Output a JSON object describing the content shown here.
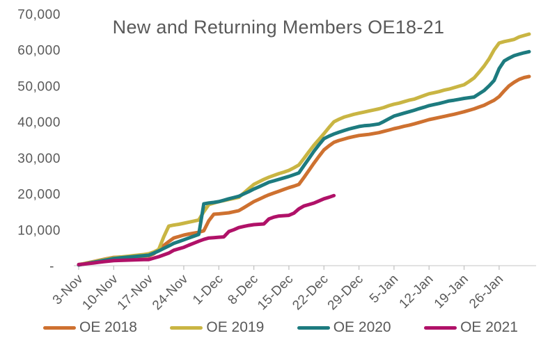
{
  "chart_data": {
    "type": "line",
    "title": "New and Returning Members OE18-21",
    "x_tick_labels": [
      "3-Nov",
      "10-Nov",
      "17-Nov",
      "24-Nov",
      "1-Dec",
      "8-Dec",
      "15-Dec",
      "22-Dec",
      "29-Dec",
      "5-Jan",
      "12-Jan",
      "19-Jan",
      "26-Jan"
    ],
    "x_tick_interval_days": 7,
    "x_total_days": 91,
    "y_axis_labels": [
      "-",
      "10,000",
      "20,000",
      "30,000",
      "40,000",
      "50,000",
      "60,000",
      "70,000"
    ],
    "ylim": [
      0,
      70000
    ],
    "grid": false,
    "legend_position": "bottom",
    "text_color": "#595959",
    "axis_color": "#D9D9D9",
    "tick_color": "#BFBFBF",
    "series": [
      {
        "name": "OE 2018",
        "color": "#CE7130",
        "values": [
          250,
          550,
          850,
          1150,
          1450,
          1750,
          2050,
          2300,
          2360,
          2420,
          2480,
          2540,
          2590,
          2650,
          2700,
          3300,
          4400,
          5600,
          6700,
          7700,
          8100,
          8500,
          8800,
          9050,
          9300,
          9700,
          12500,
          14300,
          14400,
          14550,
          14700,
          15000,
          15300,
          16100,
          16950,
          17800,
          18450,
          19100,
          19700,
          20200,
          20700,
          21200,
          21700,
          22100,
          22600,
          24500,
          26500,
          28500,
          30400,
          32200,
          33300,
          34300,
          34800,
          35200,
          35600,
          35900,
          36200,
          36350,
          36500,
          36750,
          37000,
          37350,
          37700,
          38100,
          38400,
          38750,
          39050,
          39400,
          39800,
          40200,
          40600,
          40900,
          41200,
          41500,
          41800,
          42100,
          42450,
          42800,
          43200,
          43600,
          44100,
          44600,
          45300,
          46000,
          47000,
          48600,
          50000,
          51000,
          51800,
          52300,
          52600
        ]
      },
      {
        "name": "OE 2019",
        "color": "#C9B543",
        "values": [
          300,
          550,
          850,
          1100,
          1400,
          1650,
          1950,
          2200,
          2350,
          2500,
          2650,
          2800,
          2950,
          3100,
          3300,
          3800,
          4500,
          8000,
          11000,
          11300,
          11500,
          11800,
          12100,
          12400,
          12700,
          15000,
          17000,
          17400,
          17800,
          18100,
          18400,
          18700,
          19000,
          20200,
          21400,
          22600,
          23300,
          24000,
          24600,
          25100,
          25600,
          26000,
          26500,
          27200,
          28000,
          29800,
          31700,
          33500,
          35100,
          36700,
          38400,
          40000,
          40700,
          41300,
          41700,
          42100,
          42400,
          42700,
          43000,
          43300,
          43600,
          44000,
          44500,
          44900,
          45200,
          45600,
          46000,
          46300,
          46800,
          47300,
          47800,
          48100,
          48400,
          48800,
          49100,
          49500,
          49900,
          50300,
          51200,
          52200,
          53800,
          55500,
          57500,
          60000,
          61900,
          62300,
          62600,
          62900,
          63600,
          64000,
          64400
        ]
      },
      {
        "name": "OE 2020",
        "color": "#1D7B7F",
        "values": [
          200,
          450,
          700,
          950,
          1200,
          1450,
          1700,
          2000,
          2130,
          2260,
          2390,
          2520,
          2650,
          2780,
          2900,
          3500,
          4100,
          4800,
          5500,
          6200,
          6700,
          7200,
          7700,
          8200,
          8700,
          17200,
          17450,
          17600,
          17800,
          18200,
          18600,
          18950,
          19300,
          19950,
          20600,
          21300,
          21900,
          22550,
          23200,
          23600,
          24000,
          24400,
          24800,
          25300,
          25800,
          27800,
          29800,
          31800,
          33600,
          35300,
          36000,
          36600,
          37100,
          37550,
          38000,
          38350,
          38700,
          38900,
          39000,
          39200,
          39400,
          40100,
          40850,
          41600,
          42000,
          42400,
          42800,
          43200,
          43650,
          44050,
          44500,
          44800,
          45100,
          45450,
          45800,
          46000,
          46250,
          46500,
          46700,
          46900,
          47800,
          48700,
          50000,
          51500,
          54800,
          56900,
          57700,
          58400,
          58800,
          59200,
          59500
        ]
      },
      {
        "name": "OE 2021",
        "color": "#B01168",
        "values": [
          300,
          450,
          600,
          750,
          950,
          1100,
          1250,
          1400,
          1450,
          1500,
          1550,
          1600,
          1650,
          1680,
          1700,
          2100,
          2500,
          3000,
          3500,
          4300,
          4700,
          5100,
          5700,
          6250,
          6800,
          7300,
          7700,
          7800,
          7900,
          8000,
          9500,
          10000,
          10600,
          10900,
          11200,
          11400,
          11500,
          11600,
          13000,
          13500,
          13800,
          13900,
          14000,
          14600,
          15800,
          16600,
          17000,
          17400,
          18000,
          18600,
          19000,
          19500
        ]
      }
    ]
  }
}
